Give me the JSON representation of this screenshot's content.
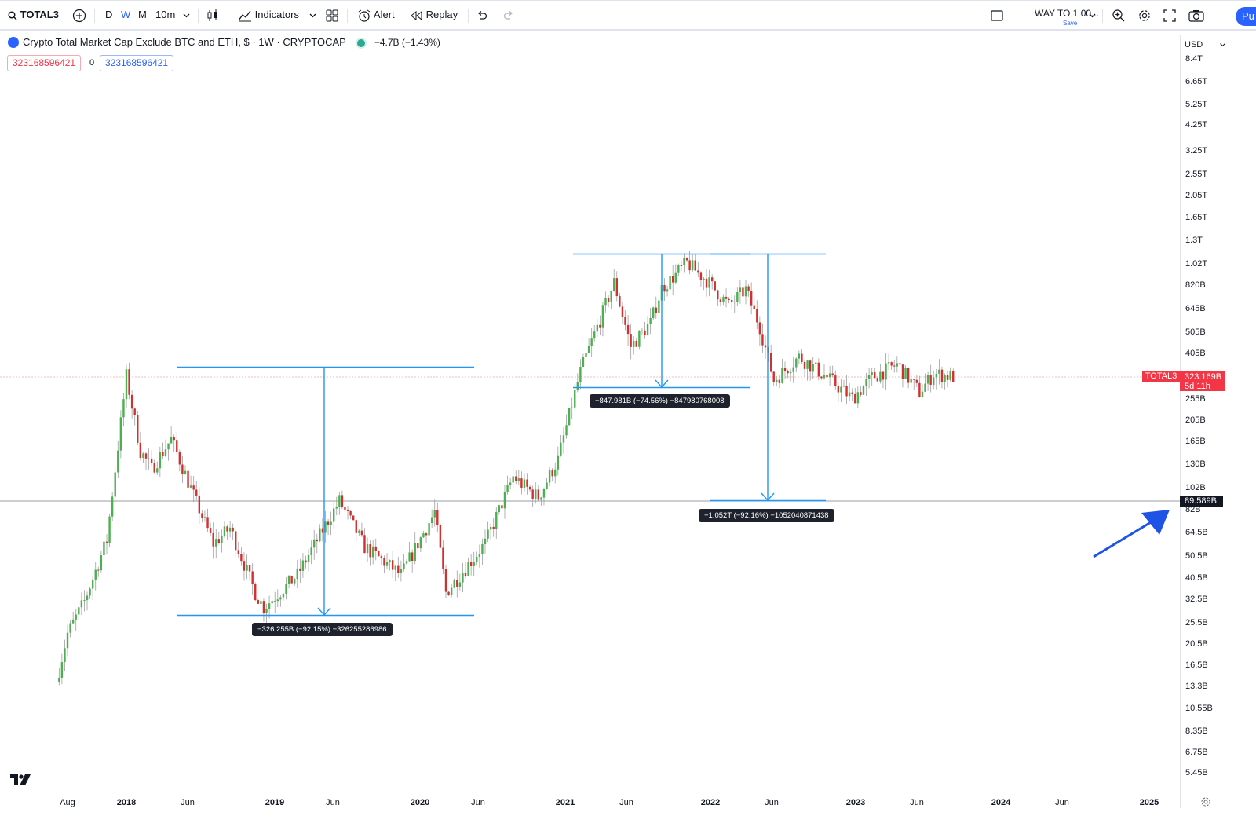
{
  "toolbar": {
    "symbol": "TOTAL3",
    "timeframes": [
      "D",
      "W",
      "M",
      "10m"
    ],
    "active_timeframe": "W",
    "indicators_label": "Indicators",
    "alert_label": "Alert",
    "replay_label": "Replay",
    "layout_name": "WAY TO 1 00...",
    "layout_save": "Save",
    "publish_label": "Pu"
  },
  "legend": {
    "title": "Crypto Total Market Cap Exclude BTC and ETH, $ · 1W · CRYPTOCAP",
    "change": "−4.7B (−1.43%)",
    "ohlc_red": "323168596421",
    "ohlc_zero": "0",
    "ohlc_blue": "323168596421"
  },
  "price_scale": {
    "currency": "USD",
    "ticks": [
      "8.4T",
      "6.65T",
      "5.25T",
      "4.25T",
      "3.25T",
      "2.55T",
      "2.05T",
      "1.65T",
      "1.3T",
      "1.02T",
      "820B",
      "645B",
      "505B",
      "405B",
      "255B",
      "205B",
      "165B",
      "130B",
      "102B",
      "82B",
      "64.5B",
      "50.5B",
      "40.5B",
      "32.5B",
      "25.5B",
      "20.5B",
      "16.5B",
      "13.3B",
      "10.55B",
      "8.35B",
      "6.75B",
      "5.45B"
    ],
    "last_symbol": "TOTAL3",
    "last_price": "323.169B",
    "countdown": "5d 11h",
    "crosshair_price": "89.589B"
  },
  "time_scale": {
    "ticks": [
      {
        "label": "Aug",
        "year": false
      },
      {
        "label": "2018",
        "year": true
      },
      {
        "label": "Jun",
        "year": false
      },
      {
        "label": "2019",
        "year": true
      },
      {
        "label": "Jun",
        "year": false
      },
      {
        "label": "2020",
        "year": true
      },
      {
        "label": "Jun",
        "year": false
      },
      {
        "label": "2021",
        "year": true
      },
      {
        "label": "Jun",
        "year": false
      },
      {
        "label": "2022",
        "year": true
      },
      {
        "label": "Jun",
        "year": false
      },
      {
        "label": "2023",
        "year": true
      },
      {
        "label": "Jun",
        "year": false
      },
      {
        "label": "2024",
        "year": true
      },
      {
        "label": "Jun",
        "year": false
      },
      {
        "label": "2025",
        "year": true
      }
    ]
  },
  "measurements": [
    {
      "text": "−326.255B (−92.15%) −326255286986"
    },
    {
      "text": "−847.981B (−74.56%) −847980768008"
    },
    {
      "text": "−1.052T (−92.16%) −1052040871438"
    }
  ],
  "colors": {
    "up": "#4caf50",
    "down": "#d32f2f",
    "drawing": "#2196f3",
    "arrow": "#1e53e5",
    "last_price": "#f23645"
  },
  "chart_data": {
    "type": "candlestick",
    "interval": "1W",
    "anchors": [
      [
        "2017-07-17",
        14
      ],
      [
        "2017-08-14",
        23
      ],
      [
        "2017-09-25",
        32
      ],
      [
        "2017-11-20",
        60
      ],
      [
        "2018-01-08",
        325
      ],
      [
        "2018-02-12",
        150
      ],
      [
        "2018-03-12",
        125
      ],
      [
        "2018-04-30",
        170
      ],
      [
        "2018-06-25",
        95
      ],
      [
        "2018-08-13",
        58
      ],
      [
        "2018-09-24",
        68
      ],
      [
        "2018-11-26",
        35
      ],
      [
        "2018-12-17",
        30
      ],
      [
        "2019-03-11",
        42
      ],
      [
        "2019-06-24",
        90
      ],
      [
        "2019-08-26",
        56
      ],
      [
        "2019-11-25",
        42
      ],
      [
        "2020-02-17",
        80
      ],
      [
        "2020-03-16",
        35
      ],
      [
        "2020-06-22",
        58
      ],
      [
        "2020-08-31",
        115
      ],
      [
        "2020-11-02",
        93
      ],
      [
        "2020-12-21",
        138
      ],
      [
        "2021-02-15",
        340
      ],
      [
        "2021-05-10",
        850
      ],
      [
        "2021-06-21",
        440
      ],
      [
        "2021-08-09",
        560
      ],
      [
        "2021-09-06",
        800
      ],
      [
        "2021-11-08",
        1040
      ],
      [
        "2021-12-27",
        870
      ],
      [
        "2022-02-21",
        670
      ],
      [
        "2022-04-04",
        790
      ],
      [
        "2022-05-09",
        540
      ],
      [
        "2022-06-13",
        310
      ],
      [
        "2022-08-15",
        395
      ],
      [
        "2022-10-24",
        320
      ],
      [
        "2022-12-26",
        258
      ],
      [
        "2023-02-13",
        320
      ],
      [
        "2023-04-17",
        365
      ],
      [
        "2023-06-12",
        275
      ],
      [
        "2023-07-17",
        333
      ],
      [
        "2023-08-28",
        323
      ]
    ],
    "measure_ranges": [
      {
        "from": 354,
        "to": 28,
        "change": "−326.255B (−92.15%)"
      },
      {
        "from": 1137,
        "to": 289,
        "change": "−847.981B (−74.56%)"
      },
      {
        "from": 1141,
        "to": 89.6,
        "change": "−1.052T (−92.16%)"
      }
    ],
    "last_price": 323.169,
    "crosshair_price": 89.589,
    "y_scale": "log",
    "y_range": [
      "5.45B",
      "8.4T"
    ],
    "x_range": [
      "2017-07",
      "2025-02"
    ]
  }
}
